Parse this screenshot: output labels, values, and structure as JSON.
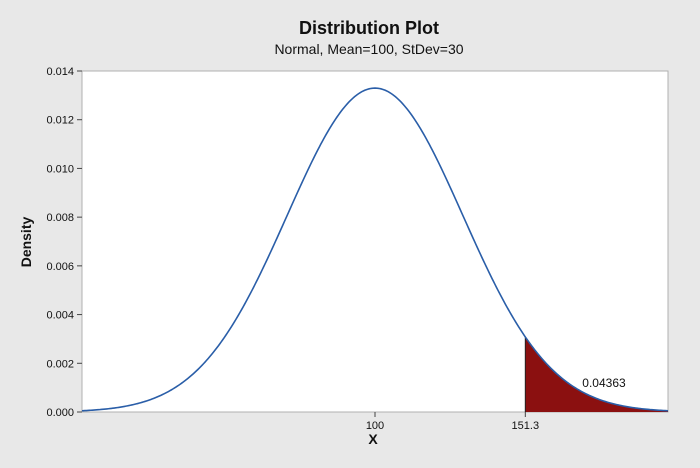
{
  "chart_data": {
    "type": "area",
    "title": "Distribution Plot",
    "subtitle": "Normal, Mean=100, StDev=30",
    "xlabel": "X",
    "ylabel": "Density",
    "distribution": {
      "family": "normal",
      "mean": 100,
      "stdev": 30
    },
    "xlim": [
      0,
      200
    ],
    "ylim": [
      0,
      0.014
    ],
    "yticks": [
      "0.000",
      "0.002",
      "0.004",
      "0.006",
      "0.008",
      "0.010",
      "0.012",
      "0.014"
    ],
    "xticks": [
      {
        "value": 100,
        "label": "100"
      },
      {
        "value": 151.3,
        "label": "151.3"
      }
    ],
    "shaded_region": {
      "from": 151.3,
      "to": 200,
      "area_label": "0.04363"
    },
    "grid": false,
    "colors": {
      "curve": "#2a5ea8",
      "shade": "#8b1010",
      "plot_bg": "#ffffff",
      "figure_bg": "#e8e8e8"
    }
  }
}
